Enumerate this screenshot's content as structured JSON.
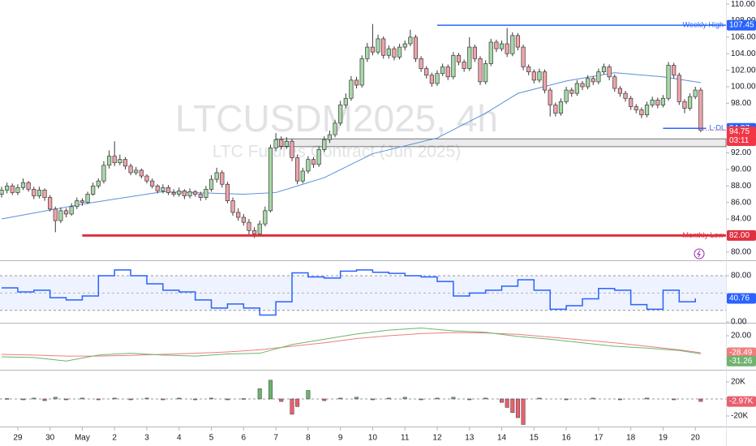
{
  "chart_data": [
    {
      "type": "candlestick",
      "title": "LTCUSDM2025, 4h",
      "subtitle": "LTC Futures Contract (Jun 2025)",
      "xlim": [
        -0.3,
        134.7
      ],
      "xticks": [
        {
          "value": 3,
          "label": "29"
        },
        {
          "value": 9,
          "label": "30"
        },
        {
          "value": 15,
          "label": "May"
        },
        {
          "value": 21,
          "label": "2"
        },
        {
          "value": 27,
          "label": "3"
        },
        {
          "value": 33,
          "label": "4"
        },
        {
          "value": 39,
          "label": "5"
        },
        {
          "value": 45,
          "label": "6"
        },
        {
          "value": 51,
          "label": "7"
        },
        {
          "value": 57,
          "label": "8"
        },
        {
          "value": 63,
          "label": "9"
        },
        {
          "value": 69,
          "label": "10"
        },
        {
          "value": 75,
          "label": "11"
        },
        {
          "value": 81,
          "label": "12"
        },
        {
          "value": 87,
          "label": "13"
        },
        {
          "value": 93,
          "label": "14"
        },
        {
          "value": 99,
          "label": "15"
        },
        {
          "value": 105,
          "label": "16"
        },
        {
          "value": 111,
          "label": "17"
        },
        {
          "value": 117,
          "label": "18"
        },
        {
          "value": 123,
          "label": "19"
        },
        {
          "value": 129,
          "label": "20"
        }
      ],
      "ylim": [
        79,
        110.5
      ],
      "yticks": [
        {
          "value": 110,
          "label": "110.00"
        },
        {
          "value": 108,
          "label": "108.00"
        },
        {
          "value": 106,
          "label": "106.00"
        },
        {
          "value": 104,
          "label": "104.00"
        },
        {
          "value": 102,
          "label": "102.00"
        },
        {
          "value": 100,
          "label": "100.00"
        },
        {
          "value": 98,
          "label": "98.00"
        },
        {
          "value": 92,
          "label": "92.00"
        },
        {
          "value": 90,
          "label": "90.00"
        },
        {
          "value": 88,
          "label": "88.00"
        },
        {
          "value": 86,
          "label": "86.00"
        },
        {
          "value": 84,
          "label": "84.00"
        },
        {
          "value": 80,
          "label": "80.00"
        }
      ],
      "up_color": "#a8d8a8",
      "down_color": "#f0a3aa",
      "ohlc": [
        [
          87.0,
          87.9,
          86.6,
          87.5
        ],
        [
          87.5,
          88.4,
          87.1,
          88.0
        ],
        [
          88.0,
          88.3,
          86.9,
          87.2
        ],
        [
          87.2,
          88.2,
          86.9,
          87.8
        ],
        [
          87.8,
          88.9,
          87.5,
          88.4
        ],
        [
          88.4,
          88.6,
          87.3,
          87.6
        ],
        [
          87.6,
          87.9,
          86.4,
          86.8
        ],
        [
          86.8,
          87.9,
          86.5,
          87.5
        ],
        [
          87.5,
          87.7,
          86.2,
          86.6
        ],
        [
          86.6,
          86.9,
          84.9,
          85.2
        ],
        [
          85.2,
          85.5,
          82.4,
          83.8
        ],
        [
          83.8,
          85.4,
          83.5,
          85.0
        ],
        [
          85.0,
          85.3,
          84.2,
          84.6
        ],
        [
          84.6,
          85.9,
          84.4,
          85.5
        ],
        [
          85.5,
          86.6,
          85.2,
          86.2
        ],
        [
          86.2,
          86.5,
          85.6,
          86.0
        ],
        [
          86.0,
          87.3,
          85.8,
          87.0
        ],
        [
          87.0,
          88.4,
          86.8,
          88.0
        ],
        [
          88.0,
          88.9,
          87.7,
          88.6
        ],
        [
          88.6,
          91.0,
          88.3,
          90.5
        ],
        [
          90.5,
          92.3,
          90.1,
          91.6
        ],
        [
          91.6,
          93.4,
          90.4,
          90.8
        ],
        [
          90.8,
          91.8,
          90.5,
          91.2
        ],
        [
          91.2,
          91.5,
          90.0,
          90.4
        ],
        [
          90.4,
          90.7,
          89.3,
          89.6
        ],
        [
          89.6,
          90.3,
          89.3,
          89.9
        ],
        [
          89.9,
          90.1,
          88.9,
          89.2
        ],
        [
          89.2,
          89.4,
          88.3,
          88.6
        ],
        [
          88.6,
          88.9,
          87.7,
          88.0
        ],
        [
          88.0,
          88.2,
          87.1,
          87.4
        ],
        [
          87.4,
          88.2,
          87.1,
          87.8
        ],
        [
          87.8,
          88.1,
          86.9,
          87.2
        ],
        [
          87.2,
          87.6,
          86.7,
          87.0
        ],
        [
          87.0,
          87.8,
          86.7,
          87.4
        ],
        [
          87.4,
          87.6,
          86.4,
          86.8
        ],
        [
          86.8,
          87.7,
          86.5,
          87.3
        ],
        [
          87.3,
          87.5,
          86.7,
          87.0
        ],
        [
          87.0,
          87.3,
          86.2,
          86.6
        ],
        [
          86.6,
          88.0,
          86.3,
          87.6
        ],
        [
          87.6,
          89.3,
          87.3,
          88.8
        ],
        [
          88.8,
          90.2,
          88.4,
          89.6
        ],
        [
          89.6,
          89.9,
          87.8,
          88.2
        ],
        [
          88.2,
          88.5,
          85.9,
          86.2
        ],
        [
          86.2,
          86.6,
          84.4,
          84.8
        ],
        [
          84.8,
          85.3,
          83.8,
          84.2
        ],
        [
          84.2,
          84.6,
          83.2,
          83.6
        ],
        [
          83.6,
          84.0,
          82.1,
          82.6
        ],
        [
          82.6,
          83.0,
          81.7,
          82.2
        ],
        [
          82.2,
          83.8,
          81.9,
          83.4
        ],
        [
          83.4,
          85.5,
          83.1,
          85.0
        ],
        [
          85.0,
          93.0,
          84.8,
          92.6
        ],
        [
          92.6,
          94.4,
          92.2,
          93.6
        ],
        [
          93.6,
          94.0,
          92.4,
          92.8
        ],
        [
          92.8,
          93.9,
          92.5,
          93.4
        ],
        [
          93.4,
          93.7,
          91.0,
          91.4
        ],
        [
          91.4,
          91.8,
          88.2,
          88.6
        ],
        [
          88.6,
          90.2,
          88.3,
          89.8
        ],
        [
          89.8,
          91.6,
          89.5,
          91.2
        ],
        [
          91.2,
          91.5,
          90.2,
          90.6
        ],
        [
          90.6,
          92.8,
          90.3,
          92.4
        ],
        [
          92.4,
          94.0,
          92.1,
          93.6
        ],
        [
          93.6,
          94.7,
          93.2,
          94.2
        ],
        [
          94.2,
          96.0,
          93.9,
          95.6
        ],
        [
          95.6,
          98.3,
          95.3,
          97.8
        ],
        [
          97.8,
          99.2,
          97.4,
          98.6
        ],
        [
          98.6,
          101.3,
          98.3,
          100.8
        ],
        [
          100.8,
          101.2,
          99.8,
          100.2
        ],
        [
          100.2,
          103.8,
          99.9,
          103.4
        ],
        [
          103.4,
          105.3,
          103.0,
          104.8
        ],
        [
          104.8,
          107.6,
          103.8,
          104.2
        ],
        [
          104.2,
          106.3,
          103.9,
          105.8
        ],
        [
          105.8,
          106.1,
          103.4,
          103.8
        ],
        [
          103.8,
          105.0,
          103.4,
          104.6
        ],
        [
          104.6,
          104.9,
          103.2,
          103.6
        ],
        [
          103.6,
          105.2,
          103.3,
          104.8
        ],
        [
          104.8,
          105.6,
          104.4,
          105.2
        ],
        [
          105.2,
          106.9,
          104.9,
          106.0
        ],
        [
          106.0,
          106.3,
          103.0,
          103.4
        ],
        [
          103.4,
          103.7,
          101.8,
          102.2
        ],
        [
          102.2,
          102.5,
          101.0,
          101.4
        ],
        [
          101.4,
          101.7,
          100.0,
          100.4
        ],
        [
          100.4,
          102.0,
          100.1,
          101.6
        ],
        [
          101.6,
          102.8,
          101.3,
          102.4
        ],
        [
          102.4,
          102.7,
          100.8,
          101.2
        ],
        [
          101.2,
          104.2,
          100.9,
          103.8
        ],
        [
          103.8,
          104.1,
          102.6,
          103.0
        ],
        [
          103.0,
          103.3,
          101.8,
          102.2
        ],
        [
          102.2,
          106.0,
          101.9,
          104.8
        ],
        [
          104.8,
          105.1,
          103.0,
          103.4
        ],
        [
          103.4,
          103.7,
          100.2,
          100.6
        ],
        [
          100.6,
          103.2,
          100.3,
          102.8
        ],
        [
          102.8,
          105.8,
          102.5,
          105.4
        ],
        [
          105.4,
          105.7,
          104.2,
          104.6
        ],
        [
          104.6,
          105.6,
          104.3,
          105.2
        ],
        [
          105.2,
          107.1,
          103.6,
          104.0
        ],
        [
          104.0,
          106.6,
          103.7,
          106.2
        ],
        [
          106.2,
          106.5,
          104.4,
          104.8
        ],
        [
          104.8,
          105.1,
          102.0,
          102.4
        ],
        [
          102.4,
          102.7,
          101.4,
          101.8
        ],
        [
          101.8,
          102.1,
          100.4,
          100.8
        ],
        [
          100.8,
          102.2,
          100.5,
          101.8
        ],
        [
          101.8,
          102.1,
          99.2,
          99.6
        ],
        [
          99.6,
          99.9,
          96.4,
          97.8
        ],
        [
          97.8,
          98.1,
          96.4,
          96.8
        ],
        [
          96.8,
          98.6,
          96.5,
          98.2
        ],
        [
          98.2,
          100.0,
          97.9,
          99.6
        ],
        [
          99.6,
          99.9,
          98.8,
          99.2
        ],
        [
          99.2,
          100.8,
          98.9,
          100.4
        ],
        [
          100.4,
          100.7,
          99.6,
          100.0
        ],
        [
          100.0,
          101.4,
          99.7,
          101.0
        ],
        [
          101.0,
          101.3,
          100.2,
          100.6
        ],
        [
          100.6,
          102.2,
          100.3,
          101.8
        ],
        [
          101.8,
          102.8,
          101.5,
          102.4
        ],
        [
          102.4,
          102.7,
          100.8,
          101.2
        ],
        [
          101.2,
          101.5,
          99.4,
          99.8
        ],
        [
          99.8,
          100.1,
          98.8,
          99.2
        ],
        [
          99.2,
          99.5,
          98.2,
          98.6
        ],
        [
          98.6,
          98.9,
          97.2,
          97.6
        ],
        [
          97.6,
          97.9,
          96.8,
          97.2
        ],
        [
          97.2,
          97.5,
          96.2,
          96.6
        ],
        [
          96.6,
          98.2,
          96.3,
          97.8
        ],
        [
          97.8,
          98.8,
          97.5,
          98.4
        ],
        [
          98.4,
          98.7,
          97.4,
          97.8
        ],
        [
          97.8,
          99.0,
          97.5,
          98.6
        ],
        [
          98.6,
          103.0,
          98.3,
          102.6
        ],
        [
          102.6,
          102.9,
          101.0,
          101.4
        ],
        [
          101.4,
          101.7,
          97.8,
          98.2
        ],
        [
          98.2,
          98.5,
          96.8,
          97.4
        ],
        [
          97.4,
          99.2,
          97.1,
          98.8
        ],
        [
          98.8,
          100.0,
          98.5,
          99.6
        ],
        [
          99.6,
          99.9,
          94.5,
          94.75
        ]
      ],
      "ma": {
        "color": "#5b8fd9",
        "x": [
          0,
          15,
          30,
          45,
          51,
          60,
          69,
          81,
          90,
          96,
          105,
          114,
          123,
          130
        ],
        "values": [
          84.0,
          85.8,
          87.3,
          87.0,
          87.2,
          89.0,
          91.9,
          93.8,
          96.8,
          99.2,
          100.7,
          101.7,
          101.2,
          100.5
        ]
      },
      "levels": [
        {
          "name": "Weekly High",
          "value": 107.45,
          "color": "#2962ff",
          "start": 81
        },
        {
          "name": "Monthly Low",
          "value": 82,
          "value_label": "82.00",
          "color": "#e0303f",
          "start": 15
        },
        {
          "name": "L-DL",
          "value": 94.97,
          "color": "#2962ff",
          "start": 123,
          "end": 131
        }
      ],
      "zone": {
        "low": 92.75,
        "high": 93.7,
        "start": 51
      },
      "last_price": 94.75,
      "last_color": "#f23645",
      "countdown": "03:11"
    },
    {
      "type": "line",
      "step": true,
      "color": "#2962ff",
      "x": [
        0,
        3,
        6,
        9,
        12,
        15,
        18,
        21,
        24,
        27,
        30,
        33,
        36,
        39,
        42,
        45,
        48,
        51,
        54,
        57,
        60,
        63,
        66,
        69,
        72,
        75,
        78,
        81,
        84,
        87,
        90,
        93,
        96,
        99,
        102,
        105,
        108,
        111,
        114,
        117,
        120,
        123,
        126,
        129
      ],
      "values": [
        59,
        52,
        55,
        42,
        38,
        45,
        80,
        90,
        80,
        66,
        55,
        52,
        38,
        24,
        31,
        24,
        12,
        35,
        85,
        78,
        76,
        88,
        90,
        86,
        84,
        80,
        78,
        70,
        45,
        50,
        55,
        62,
        73,
        55,
        22,
        28,
        40,
        58,
        55,
        30,
        22,
        55,
        35,
        40.76
      ],
      "ylim": [
        -1.4,
        105.3
      ],
      "yticks": [
        {
          "value": 80,
          "label": "80.00"
        },
        {
          "value": 0,
          "label": "0.00"
        }
      ],
      "band": [
        20,
        80
      ],
      "midline": 50
    },
    {
      "type": "line",
      "x": [
        0,
        6,
        12,
        18,
        24,
        30,
        36,
        42,
        48,
        54,
        60,
        66,
        72,
        78,
        84,
        90,
        96,
        102,
        108,
        114,
        120,
        126,
        130
      ],
      "series": [
        {
          "color": "#ef7d7d",
          "values": [
            -33,
            -35,
            -38,
            -38,
            -36,
            -33,
            -30,
            -26,
            -20,
            -10,
            0,
            12,
            20,
            26,
            29,
            28,
            24,
            16,
            8,
            0,
            -10,
            -20,
            -28.49
          ]
        },
        {
          "color": "#6fb36f",
          "values": [
            -40,
            -42,
            -52,
            -35,
            -30,
            -35,
            -38,
            -32,
            -30,
            -5,
            10,
            25,
            36,
            42,
            34,
            30,
            18,
            10,
            0,
            -10,
            -15,
            -22,
            -31.26
          ]
        }
      ],
      "ylim": [
        -76.9,
        54.7
      ],
      "yticks": [
        {
          "value": 20,
          "label": "20.00"
        }
      ]
    },
    {
      "type": "bar",
      "up_color": "#6fb36f",
      "down_color": "#e8606e",
      "x": [
        1,
        4,
        6,
        8,
        10,
        12,
        15,
        18,
        21,
        24,
        27,
        30,
        33,
        36,
        39,
        42,
        45,
        48,
        50,
        52,
        54,
        55,
        57,
        60,
        63,
        66,
        69,
        72,
        75,
        78,
        81,
        84,
        87,
        90,
        93,
        94,
        95,
        96,
        97,
        100,
        105,
        110,
        115,
        120,
        125,
        130
      ],
      "values": [
        500,
        -1000,
        1000,
        -2000,
        2000,
        -1000,
        1000,
        -1000,
        1000,
        -1000,
        1000,
        -1000,
        1000,
        -1000,
        1000,
        -1000,
        500,
        12000,
        22000,
        -3000,
        -18000,
        -9000,
        10000,
        -2000,
        1000,
        2000,
        -1000,
        1000,
        2000,
        -1000,
        1000,
        2000,
        -1000,
        1000,
        -4000,
        -10000,
        -16000,
        -22000,
        -30000,
        1000,
        -1000,
        1000,
        -1000,
        1000,
        -1000,
        -2970
      ],
      "last_label": "-2.97K",
      "ylim": [
        -32400,
        33300
      ],
      "yticks": [
        {
          "value": 20000,
          "label": "20K"
        },
        {
          "value": -20000,
          "label": "-20K"
        }
      ]
    }
  ]
}
